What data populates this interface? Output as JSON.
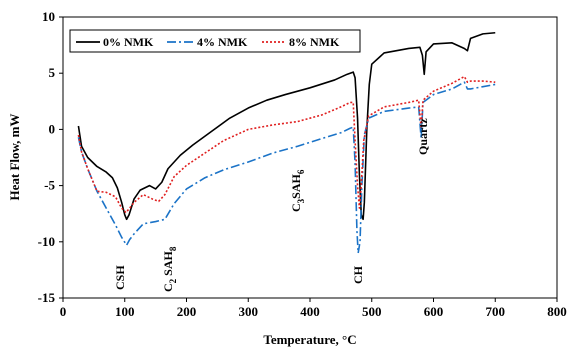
{
  "chart_data": {
    "type": "line",
    "xlabel": "Temperature, °C",
    "ylabel": "Heat Flow, mW",
    "xlim": [
      0,
      800
    ],
    "ylim": [
      -15,
      10
    ],
    "xticks": [
      0,
      100,
      200,
      300,
      400,
      500,
      600,
      700,
      800
    ],
    "yticks": [
      -15,
      -10,
      -5,
      0,
      5,
      10
    ],
    "grid": false,
    "legend": "top-left",
    "series": [
      {
        "name": "0% NMK",
        "color": "#000000",
        "dash": "solid",
        "points": [
          [
            25,
            0.3
          ],
          [
            30,
            -1.5
          ],
          [
            40,
            -2.5
          ],
          [
            55,
            -3.3
          ],
          [
            70,
            -3.8
          ],
          [
            80,
            -4.3
          ],
          [
            88,
            -5.2
          ],
          [
            95,
            -6.5
          ],
          [
            100,
            -7.6
          ],
          [
            103,
            -8
          ],
          [
            107,
            -7.6
          ],
          [
            115,
            -6.2
          ],
          [
            125,
            -5.4
          ],
          [
            140,
            -5
          ],
          [
            150,
            -5.3
          ],
          [
            160,
            -4.7
          ],
          [
            170,
            -3.5
          ],
          [
            190,
            -2.3
          ],
          [
            210,
            -1.4
          ],
          [
            240,
            -0.2
          ],
          [
            270,
            1
          ],
          [
            300,
            1.9
          ],
          [
            330,
            2.6
          ],
          [
            360,
            3.1
          ],
          [
            400,
            3.7
          ],
          [
            440,
            4.4
          ],
          [
            460,
            4.9
          ],
          [
            470,
            5.1
          ],
          [
            473,
            4.6
          ],
          [
            477,
            1
          ],
          [
            480,
            -4
          ],
          [
            483,
            -7.6
          ],
          [
            486,
            -8
          ],
          [
            488,
            -6.5
          ],
          [
            492,
            0
          ],
          [
            496,
            4
          ],
          [
            500,
            5.8
          ],
          [
            520,
            6.8
          ],
          [
            560,
            7.2
          ],
          [
            578,
            7.3
          ],
          [
            582,
            6.6
          ],
          [
            585,
            4.9
          ],
          [
            588,
            6.9
          ],
          [
            600,
            7.6
          ],
          [
            630,
            7.7
          ],
          [
            650,
            7.2
          ],
          [
            655,
            7
          ],
          [
            660,
            8.1
          ],
          [
            680,
            8.5
          ],
          [
            700,
            8.6
          ]
        ]
      },
      {
        "name": "4% NMK",
        "color": "#1b73c7",
        "dash": "dash-dot",
        "points": [
          [
            25,
            -0.7
          ],
          [
            30,
            -2
          ],
          [
            40,
            -3.5
          ],
          [
            55,
            -5.5
          ],
          [
            70,
            -7
          ],
          [
            85,
            -8.5
          ],
          [
            95,
            -9.6
          ],
          [
            103,
            -10.3
          ],
          [
            108,
            -9.8
          ],
          [
            115,
            -9.3
          ],
          [
            130,
            -8.4
          ],
          [
            150,
            -8.2
          ],
          [
            165,
            -8
          ],
          [
            180,
            -6.6
          ],
          [
            200,
            -5.3
          ],
          [
            230,
            -4.3
          ],
          [
            260,
            -3.6
          ],
          [
            300,
            -2.9
          ],
          [
            340,
            -2.1
          ],
          [
            380,
            -1.5
          ],
          [
            420,
            -0.8
          ],
          [
            450,
            -0.3
          ],
          [
            465,
            0.1
          ],
          [
            470,
            0.2
          ],
          [
            473,
            -3
          ],
          [
            476,
            -9
          ],
          [
            478,
            -11
          ],
          [
            481,
            -10
          ],
          [
            484,
            -5
          ],
          [
            488,
            -0.5
          ],
          [
            495,
            1
          ],
          [
            520,
            1.6
          ],
          [
            560,
            1.9
          ],
          [
            576,
            2
          ],
          [
            580,
            -0.8
          ],
          [
            583,
            2.4
          ],
          [
            600,
            3.1
          ],
          [
            630,
            3.6
          ],
          [
            650,
            4.2
          ],
          [
            655,
            3.6
          ],
          [
            660,
            3.6
          ],
          [
            680,
            3.8
          ],
          [
            700,
            4
          ]
        ]
      },
      {
        "name": "8% NMK",
        "color": "#e02020",
        "dash": "dotted",
        "points": [
          [
            25,
            -0.5
          ],
          [
            30,
            -2
          ],
          [
            40,
            -3.5
          ],
          [
            55,
            -5.5
          ],
          [
            70,
            -5.6
          ],
          [
            85,
            -6
          ],
          [
            95,
            -7
          ],
          [
            102,
            -7.4
          ],
          [
            108,
            -7
          ],
          [
            115,
            -6.5
          ],
          [
            130,
            -5.8
          ],
          [
            145,
            -6.2
          ],
          [
            155,
            -6.4
          ],
          [
            165,
            -5.8
          ],
          [
            180,
            -4.2
          ],
          [
            200,
            -3.2
          ],
          [
            230,
            -2.1
          ],
          [
            260,
            -1
          ],
          [
            300,
            0
          ],
          [
            340,
            0.4
          ],
          [
            380,
            0.7
          ],
          [
            420,
            1.3
          ],
          [
            450,
            2
          ],
          [
            465,
            2.4
          ],
          [
            470,
            2.4
          ],
          [
            473,
            -1
          ],
          [
            477,
            -5
          ],
          [
            480,
            -7
          ],
          [
            483,
            -5
          ],
          [
            487,
            -1
          ],
          [
            495,
            1.2
          ],
          [
            520,
            2
          ],
          [
            560,
            2.4
          ],
          [
            576,
            2.6
          ],
          [
            580,
            0.1
          ],
          [
            583,
            2.6
          ],
          [
            600,
            3.4
          ],
          [
            630,
            4.1
          ],
          [
            650,
            4.7
          ],
          [
            655,
            4.2
          ],
          [
            660,
            4.3
          ],
          [
            680,
            4.3
          ],
          [
            700,
            4.2
          ]
        ]
      }
    ],
    "annotations": [
      {
        "base": "CSH"
      },
      {
        "main": "C",
        "sub1": "2",
        "main2": " SAH",
        "sub2": "8"
      },
      {
        "main": "C",
        "sub1": "3",
        "main2": "SAH",
        "sub2": "6"
      },
      {
        "base": "CH"
      },
      {
        "base": "Quartz"
      }
    ]
  }
}
